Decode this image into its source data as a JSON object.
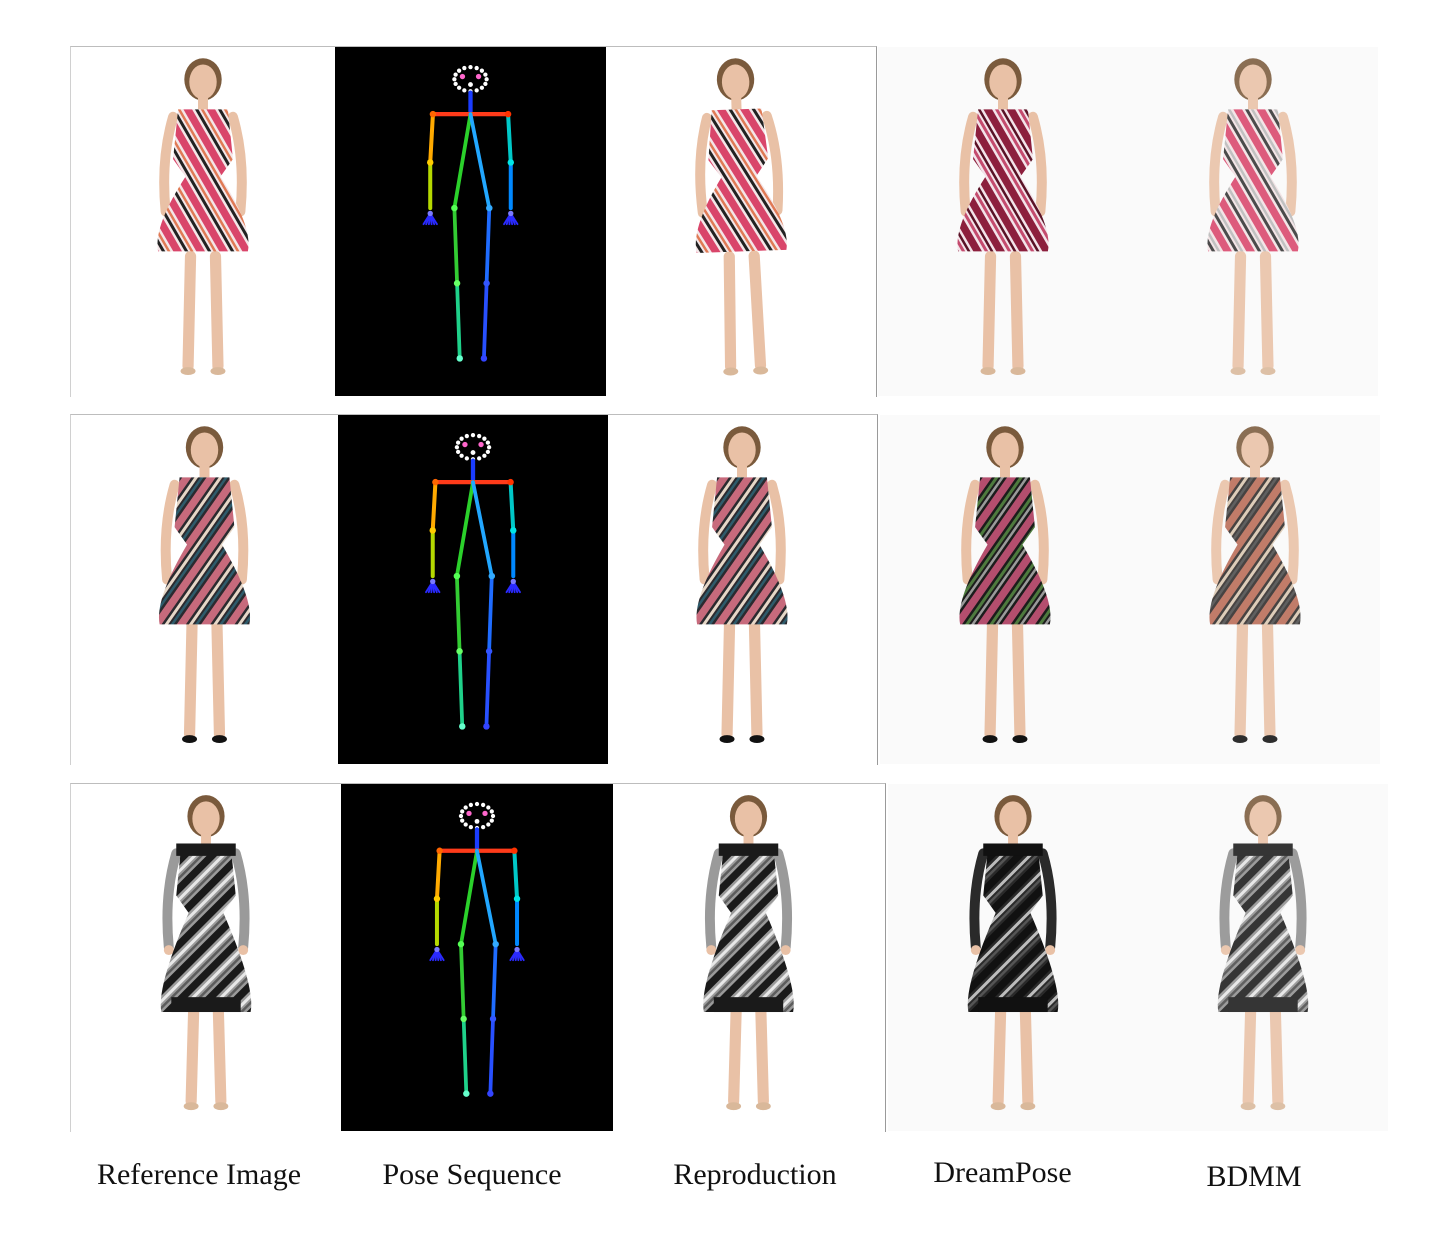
{
  "captions": {
    "reference": "Reference Image",
    "pose": "Pose Sequence",
    "reproduction": "Reproduction",
    "dreampose": "DreamPose",
    "bdmm": "BDMM"
  },
  "rows": [
    {
      "dress_colors": {
        "base": "#f4e6e8",
        "accent": "#d9456a",
        "stripe": "#222222",
        "alt": "#e07a55"
      },
      "dreampose_colors": {
        "base": "#f3e4ea",
        "accent": "#8c1f3d",
        "stripe": "#c44b6e",
        "alt": "#5a1226"
      },
      "bdmm_colors": {
        "base": "#f2e2e4",
        "accent": "#d9456a",
        "stripe": "#333333",
        "alt": "#b9b9b9"
      }
    },
    {
      "dress_colors": {
        "base": "#2b2a2f",
        "accent": "#c76a7c",
        "stripe": "#e6d7c7",
        "alt": "#2e5b6b"
      },
      "dreampose_colors": {
        "base": "#1c1c1c",
        "accent": "#b44e6e",
        "stripe": "#4e7a3e",
        "alt": "#9a9a9a"
      },
      "bdmm_colors": {
        "base": "#2e2a28",
        "accent": "#b96a55",
        "stripe": "#d9c6b0",
        "alt": "#4a4a4a"
      }
    },
    {
      "dress_colors": {
        "base": "#9a9a9a",
        "accent": "#1a1a1a",
        "stripe": "#e8e8e8",
        "alt": "#5c5c5c"
      },
      "dreampose_colors": {
        "base": "#2a2a2a",
        "accent": "#111111",
        "stripe": "#bdbdbd",
        "alt": "#555555"
      },
      "bdmm_colors": {
        "base": "#8f8f8f",
        "accent": "#1a1a1a",
        "stripe": "#e5e5e5",
        "alt": "#4a4a4a"
      }
    }
  ],
  "skin_color": "#e9c1a6",
  "hair_color": "#7a5a3c"
}
